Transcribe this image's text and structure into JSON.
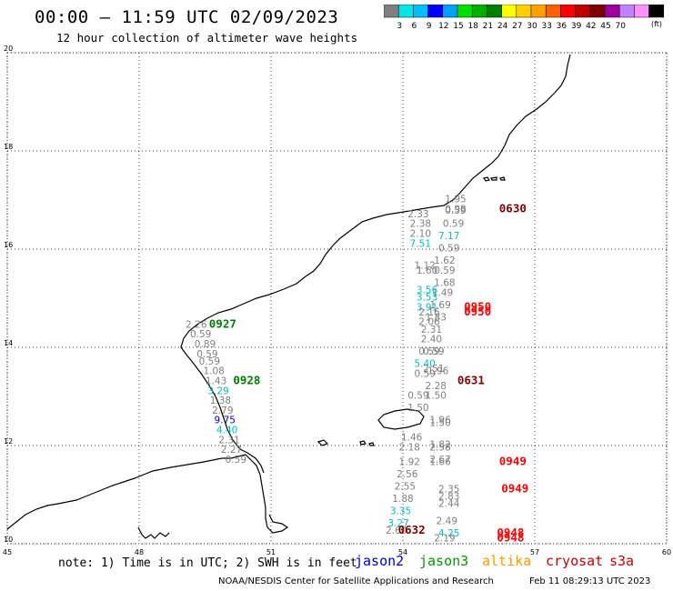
{
  "header": {
    "title": "00:00 – 11:59 UTC 02/09/2023",
    "subtitle": "12 hour collection of altimeter wave heights"
  },
  "legend": {
    "unit": "(ft)",
    "colors": [
      "#808080",
      "#00e5e5",
      "#00bfff",
      "#0000ff",
      "#00a0ff",
      "#00e000",
      "#00b000",
      "#008000",
      "#ffff00",
      "#ffd000",
      "#ffa000",
      "#ff6000",
      "#ff0000",
      "#c00000",
      "#800000",
      "#a000a0",
      "#c080ff",
      "#ff90ff",
      "#000000"
    ],
    "labels": [
      "3",
      "6",
      "9",
      "12",
      "15",
      "18",
      "21",
      "24",
      "27",
      "30",
      "33",
      "36",
      "39",
      "42",
      "45",
      "70"
    ]
  },
  "axes": {
    "x_ticks": [
      "45",
      "48",
      "51",
      "54",
      "57",
      "60"
    ],
    "y_ticks": [
      "20",
      "18",
      "16",
      "14",
      "12",
      "10"
    ]
  },
  "observations": [
    {
      "lon": 49.3,
      "lat": 14.4,
      "value": "2.26",
      "color": "#808080"
    },
    {
      "lon": 49.4,
      "lat": 14.2,
      "value": "0.59",
      "color": "#808080"
    },
    {
      "lon": 49.5,
      "lat": 14.0,
      "value": "0.89",
      "color": "#808080"
    },
    {
      "lon": 49.55,
      "lat": 13.8,
      "value": "0.59",
      "color": "#808080"
    },
    {
      "lon": 49.6,
      "lat": 13.65,
      "value": "0.59",
      "color": "#808080"
    },
    {
      "lon": 49.7,
      "lat": 13.45,
      "value": "1.08",
      "color": "#808080"
    },
    {
      "lon": 49.75,
      "lat": 13.25,
      "value": "1.43",
      "color": "#808080"
    },
    {
      "lon": 49.8,
      "lat": 13.05,
      "value": "3.29",
      "color": "#00bfbf"
    },
    {
      "lon": 49.85,
      "lat": 12.85,
      "value": "1.38",
      "color": "#808080"
    },
    {
      "lon": 49.9,
      "lat": 12.65,
      "value": "2.79",
      "color": "#808080"
    },
    {
      "lon": 49.95,
      "lat": 12.45,
      "value": "9.75",
      "color": "#0000cc"
    },
    {
      "lon": 50.0,
      "lat": 12.25,
      "value": "4.40",
      "color": "#00bfbf"
    },
    {
      "lon": 50.05,
      "lat": 12.05,
      "value": "2.31",
      "color": "#808080"
    },
    {
      "lon": 50.1,
      "lat": 11.85,
      "value": "2.27",
      "color": "#808080"
    },
    {
      "lon": 50.2,
      "lat": 11.65,
      "value": "0.59",
      "color": "#808080"
    },
    {
      "lon": 54.35,
      "lat": 16.65,
      "value": "2.33",
      "color": "#808080"
    },
    {
      "lon": 54.4,
      "lat": 16.45,
      "value": "2.38",
      "color": "#808080"
    },
    {
      "lon": 54.4,
      "lat": 16.25,
      "value": "2.10",
      "color": "#808080"
    },
    {
      "lon": 54.4,
      "lat": 16.05,
      "value": "7.51",
      "color": "#00bfbf"
    },
    {
      "lon": 55.2,
      "lat": 16.95,
      "value": "1.95",
      "color": "#808080"
    },
    {
      "lon": 55.2,
      "lat": 16.75,
      "value": "0.98",
      "color": "#808080"
    },
    {
      "lon": 55.2,
      "lat": 16.72,
      "value": "0.59",
      "color": "#808080"
    },
    {
      "lon": 55.15,
      "lat": 16.45,
      "value": "0.59",
      "color": "#808080"
    },
    {
      "lon": 55.05,
      "lat": 16.2,
      "value": "7.17",
      "color": "#00bfbf"
    },
    {
      "lon": 55.05,
      "lat": 15.95,
      "value": "0.59",
      "color": "#808080"
    },
    {
      "lon": 54.95,
      "lat": 15.7,
      "value": "1.62",
      "color": "#808080"
    },
    {
      "lon": 54.5,
      "lat": 15.6,
      "value": "1.12",
      "color": "#808080"
    },
    {
      "lon": 54.55,
      "lat": 15.5,
      "value": "1.60",
      "color": "#808080"
    },
    {
      "lon": 54.95,
      "lat": 15.5,
      "value": "0.59",
      "color": "#808080"
    },
    {
      "lon": 54.95,
      "lat": 15.25,
      "value": "1.68",
      "color": "#808080"
    },
    {
      "lon": 54.9,
      "lat": 15.05,
      "value": "1.49",
      "color": "#808080"
    },
    {
      "lon": 54.55,
      "lat": 15.1,
      "value": "3.56",
      "color": "#00bfbf"
    },
    {
      "lon": 54.55,
      "lat": 14.95,
      "value": "3.53",
      "color": "#00bfbf"
    },
    {
      "lon": 54.85,
      "lat": 14.8,
      "value": "1.69",
      "color": "#808080"
    },
    {
      "lon": 54.55,
      "lat": 14.75,
      "value": "3.91",
      "color": "#00bfbf"
    },
    {
      "lon": 54.6,
      "lat": 14.65,
      "value": "2.16",
      "color": "#808080"
    },
    {
      "lon": 54.75,
      "lat": 14.55,
      "value": "1.83",
      "color": "#808080"
    },
    {
      "lon": 54.6,
      "lat": 14.45,
      "value": "2.06",
      "color": "#808080"
    },
    {
      "lon": 54.65,
      "lat": 14.3,
      "value": "2.31",
      "color": "#808080"
    },
    {
      "lon": 54.65,
      "lat": 14.1,
      "value": "2.40",
      "color": "#808080"
    },
    {
      "lon": 54.6,
      "lat": 13.85,
      "value": "0.59",
      "color": "#808080"
    },
    {
      "lon": 54.7,
      "lat": 13.85,
      "value": "0.59",
      "color": "#808080"
    },
    {
      "lon": 54.5,
      "lat": 13.6,
      "value": "5.40",
      "color": "#00bfbf"
    },
    {
      "lon": 54.7,
      "lat": 13.5,
      "value": "2.51",
      "color": "#808080"
    },
    {
      "lon": 54.8,
      "lat": 13.45,
      "value": "1.96",
      "color": "#808080"
    },
    {
      "lon": 54.5,
      "lat": 13.4,
      "value": "0.59",
      "color": "#808080"
    },
    {
      "lon": 54.75,
      "lat": 13.15,
      "value": "2.28",
      "color": "#808080"
    },
    {
      "lon": 54.35,
      "lat": 12.95,
      "value": "0.59",
      "color": "#808080"
    },
    {
      "lon": 54.75,
      "lat": 12.95,
      "value": "1.50",
      "color": "#808080"
    },
    {
      "lon": 54.35,
      "lat": 12.7,
      "value": "1.50",
      "color": "#808080"
    },
    {
      "lon": 54.85,
      "lat": 12.45,
      "value": "1.96",
      "color": "#808080"
    },
    {
      "lon": 54.85,
      "lat": 12.4,
      "value": "1.50",
      "color": "#808080"
    },
    {
      "lon": 54.2,
      "lat": 12.1,
      "value": "1.46",
      "color": "#808080"
    },
    {
      "lon": 54.15,
      "lat": 11.9,
      "value": "2.18",
      "color": "#808080"
    },
    {
      "lon": 54.85,
      "lat": 11.95,
      "value": "1.82",
      "color": "#808080"
    },
    {
      "lon": 54.85,
      "lat": 11.9,
      "value": "2.58",
      "color": "#808080"
    },
    {
      "lon": 54.15,
      "lat": 11.6,
      "value": "1.92",
      "color": "#808080"
    },
    {
      "lon": 54.85,
      "lat": 11.65,
      "value": "2.67",
      "color": "#808080"
    },
    {
      "lon": 54.85,
      "lat": 11.6,
      "value": "1.66",
      "color": "#808080"
    },
    {
      "lon": 54.1,
      "lat": 11.35,
      "value": "2.56",
      "color": "#808080"
    },
    {
      "lon": 54.05,
      "lat": 11.1,
      "value": "2.55",
      "color": "#808080"
    },
    {
      "lon": 55.05,
      "lat": 11.05,
      "value": "2.35",
      "color": "#808080"
    },
    {
      "lon": 54.0,
      "lat": 10.85,
      "value": "1.88",
      "color": "#808080"
    },
    {
      "lon": 55.05,
      "lat": 10.9,
      "value": "2.83",
      "color": "#808080"
    },
    {
      "lon": 55.05,
      "lat": 10.75,
      "value": "2.44",
      "color": "#808080"
    },
    {
      "lon": 53.95,
      "lat": 10.6,
      "value": "3.35",
      "color": "#00bfbf"
    },
    {
      "lon": 53.9,
      "lat": 10.35,
      "value": "3.27",
      "color": "#00bfbf"
    },
    {
      "lon": 55.0,
      "lat": 10.4,
      "value": "2.49",
      "color": "#808080"
    },
    {
      "lon": 53.85,
      "lat": 10.2,
      "value": "2.60",
      "color": "#808080"
    },
    {
      "lon": 55.05,
      "lat": 10.15,
      "value": "4.25",
      "color": "#00bfbf"
    },
    {
      "lon": 54.95,
      "lat": 10.05,
      "value": "2.19",
      "color": "#808080"
    }
  ],
  "pass_labels": [
    {
      "lon": 56.5,
      "lat": 16.75,
      "text": "0630",
      "color": "#800000"
    },
    {
      "lon": 49.9,
      "lat": 14.4,
      "text": "0927",
      "color": "#008000"
    },
    {
      "lon": 50.45,
      "lat": 13.25,
      "text": "0928",
      "color": "#008000"
    },
    {
      "lon": 55.7,
      "lat": 14.75,
      "text": "0950",
      "color": "#ff0000"
    },
    {
      "lon": 55.7,
      "lat": 14.65,
      "text": "0950",
      "color": "#ff0000"
    },
    {
      "lon": 55.55,
      "lat": 13.25,
      "text": "0631",
      "color": "#800000"
    },
    {
      "lon": 56.5,
      "lat": 11.6,
      "text": "0949",
      "color": "#ff0000"
    },
    {
      "lon": 56.55,
      "lat": 11.05,
      "text": "0949",
      "color": "#ff0000"
    },
    {
      "lon": 54.2,
      "lat": 10.2,
      "text": "0632",
      "color": "#800000"
    },
    {
      "lon": 56.45,
      "lat": 10.15,
      "text": "0948",
      "color": "#ff0000"
    },
    {
      "lon": 56.45,
      "lat": 10.05,
      "text": "0948",
      "color": "#ff0000"
    }
  ],
  "footer": {
    "note": "note: 1) Time is in UTC; 2) SWH is in feet",
    "satellites": [
      {
        "name": "jason2",
        "color": "#0000cc"
      },
      {
        "name": "jason3",
        "color": "#009900"
      },
      {
        "name": "altika",
        "color": "#ff9900"
      },
      {
        "name": "cryosat",
        "color": "#cc0000"
      },
      {
        "name": "s3a",
        "color": "#cc0000"
      }
    ],
    "credit": "NOAA/NESDIS Center for Satellite Applications and Research",
    "timestamp": "Feb 11 08:29:13 UTC 2023"
  }
}
